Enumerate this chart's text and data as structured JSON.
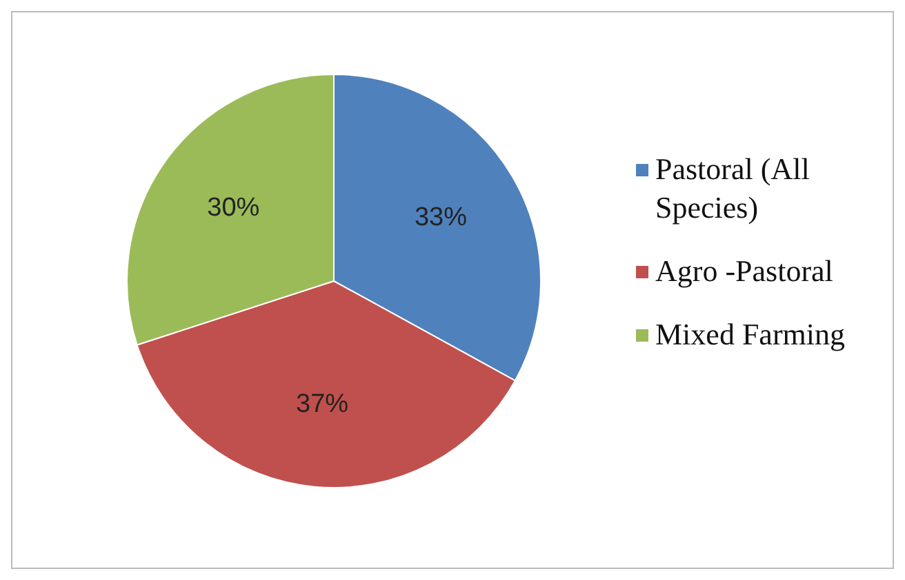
{
  "chart_data": {
    "type": "pie",
    "categories": [
      "Pastoral (All Species)",
      "Agro -Pastoral",
      "Mixed Farming"
    ],
    "values": [
      33,
      37,
      30
    ],
    "colors": [
      "#4f81bd",
      "#c0504d",
      "#9bbb59"
    ],
    "value_labels": [
      "33%",
      "37%",
      "30%"
    ],
    "legend": "right"
  }
}
